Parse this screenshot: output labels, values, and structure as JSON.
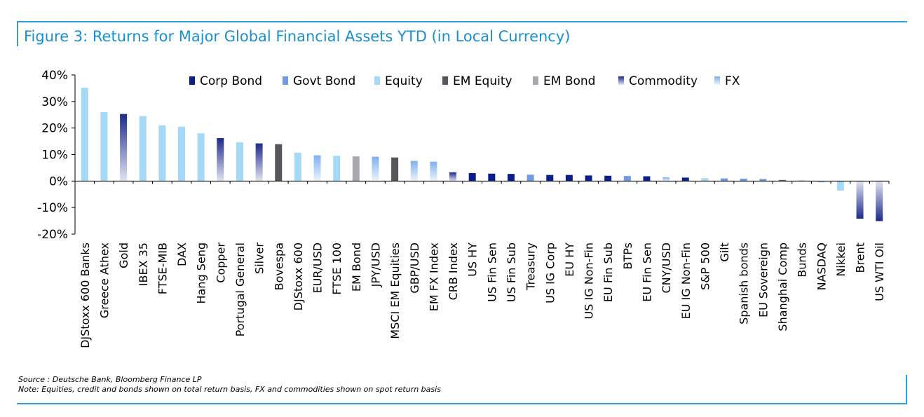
{
  "figure": {
    "title": "Figure 3: Returns for Major Global Financial Assets YTD (in Local Currency)",
    "source": "Source : Deutsche Bank, Bloomberg Finance LP",
    "note": "Note: Equities, credit and bonds shown on total return basis, FX and commodities shown on spot return basis"
  },
  "colors": {
    "frame": "#2aa1d8",
    "title": "#1a8fd0",
    "Corp Bond": "#0a1e8c",
    "Govt Bond": "#6f9be6",
    "Equity": "#a6d9f7",
    "EM Equity": "#55575d",
    "EM Bond": "#a6a8ad",
    "Commodity_dark": "#1c2a8c",
    "Commodity_light": "#e2e4f2",
    "FX_dark": "#7fb0ec",
    "FX_light": "#eef5fd"
  },
  "chart_data": {
    "type": "bar",
    "title": "",
    "xlabel": "",
    "ylabel": "",
    "ylim": [
      -20,
      40
    ],
    "yticks": [
      40,
      30,
      20,
      10,
      0,
      -10,
      -20
    ],
    "ytick_labels": [
      "40%",
      "30%",
      "20%",
      "10%",
      "0%",
      "-10%",
      "-20%"
    ],
    "grid": false,
    "legend_position": "top-right",
    "legend": [
      "Corp Bond",
      "Govt Bond",
      "Equity",
      "EM Equity",
      "EM Bond",
      "Commodity",
      "FX"
    ],
    "categories": [
      "DJStoxx 600 Banks",
      "Greece Athex",
      "Gold",
      "IBEX 35",
      "FTSE-MIB",
      "DAX",
      "Hang Seng",
      "Copper",
      "Portugal General",
      "Silver",
      "Bovespa",
      "DJStoxx 600",
      "EUR/USD",
      "FTSE 100",
      "EM Bond",
      "JPY/USD",
      "MSCI EM Equities",
      "GBP/USD",
      "EM FX Index",
      "CRB Index",
      "US HY",
      "US Fin Sen",
      "US Fin Sub",
      "Treasury",
      "US IG Corp",
      "EU HY",
      "US IG Non-Fin",
      "EU Fin Sub",
      "BTPs",
      "EU Fin Sen",
      "CNY/USD",
      "EU IG Non-Fin",
      "S&P 500",
      "Gilt",
      "Spanish bonds",
      "EU Sovereign",
      "Shanghai Comp",
      "Bunds",
      "NASDAQ",
      "Nikkei",
      "Brent",
      "US WTI Oil"
    ],
    "values": [
      35.2,
      26.0,
      25.3,
      24.5,
      21.0,
      20.5,
      18.0,
      16.2,
      14.6,
      14.2,
      13.9,
      10.7,
      9.7,
      9.5,
      9.3,
      9.2,
      8.9,
      7.6,
      7.3,
      3.3,
      3.0,
      2.8,
      2.7,
      2.4,
      2.3,
      2.3,
      2.1,
      2.0,
      1.9,
      1.8,
      1.4,
      1.3,
      1.1,
      1.0,
      0.9,
      0.8,
      0.4,
      0.2,
      -0.5,
      -3.6,
      -14.2,
      -15.1
    ],
    "asset_class": [
      "Equity",
      "Equity",
      "Commodity",
      "Equity",
      "Equity",
      "Equity",
      "Equity",
      "Commodity",
      "Equity",
      "Commodity",
      "EM Equity",
      "Equity",
      "FX",
      "Equity",
      "EM Bond",
      "FX",
      "EM Equity",
      "FX",
      "FX",
      "Commodity",
      "Corp Bond",
      "Corp Bond",
      "Corp Bond",
      "Govt Bond",
      "Corp Bond",
      "Corp Bond",
      "Corp Bond",
      "Corp Bond",
      "Govt Bond",
      "Corp Bond",
      "FX",
      "Corp Bond",
      "Equity",
      "Govt Bond",
      "Govt Bond",
      "Govt Bond",
      "EM Equity",
      "Govt Bond",
      "Equity",
      "Equity",
      "Commodity",
      "Commodity"
    ]
  }
}
